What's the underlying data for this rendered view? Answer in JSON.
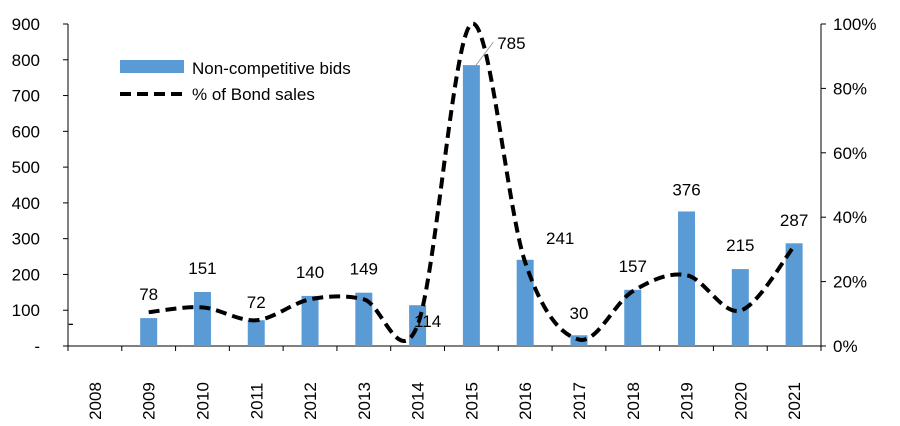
{
  "chart_data": {
    "type": "bar",
    "categories": [
      "2008",
      "2009",
      "2010",
      "2011",
      "2012",
      "2013",
      "2014",
      "2015",
      "2016",
      "2017",
      "2018",
      "2019",
      "2020",
      "2021"
    ],
    "series": [
      {
        "name": "Non-competitive bids",
        "type": "bar",
        "axis": "left",
        "values": [
          0,
          78,
          151,
          72,
          140,
          149,
          114,
          785,
          241,
          30,
          157,
          376,
          215,
          287
        ],
        "data_labels": [
          "-",
          "78",
          "151",
          "72",
          "140",
          "149",
          "114",
          "785",
          "241",
          "30",
          "157",
          "376",
          "215",
          "287"
        ],
        "color": "#5b9bd5"
      },
      {
        "name": "% of Bond sales",
        "type": "line",
        "style": "dashed",
        "smooth": true,
        "axis": "right",
        "values": [
          null,
          10.5,
          12,
          8,
          14.5,
          14.5,
          6.5,
          100,
          26,
          2,
          17,
          22,
          11,
          31
        ],
        "color": "#000000"
      }
    ],
    "left_axis": {
      "min": 0,
      "max": 900,
      "step": 100,
      "ticks": [
        "-",
        "100",
        "200",
        "300",
        "400",
        "500",
        "600",
        "700",
        "800",
        "900"
      ]
    },
    "right_axis": {
      "min": 0,
      "max": 100,
      "step": 20,
      "ticks": [
        "0%",
        "20%",
        "40%",
        "60%",
        "80%",
        "100%"
      ]
    },
    "xlabel": "",
    "ylabel": "",
    "grid": false,
    "legend_position": "top-left"
  }
}
